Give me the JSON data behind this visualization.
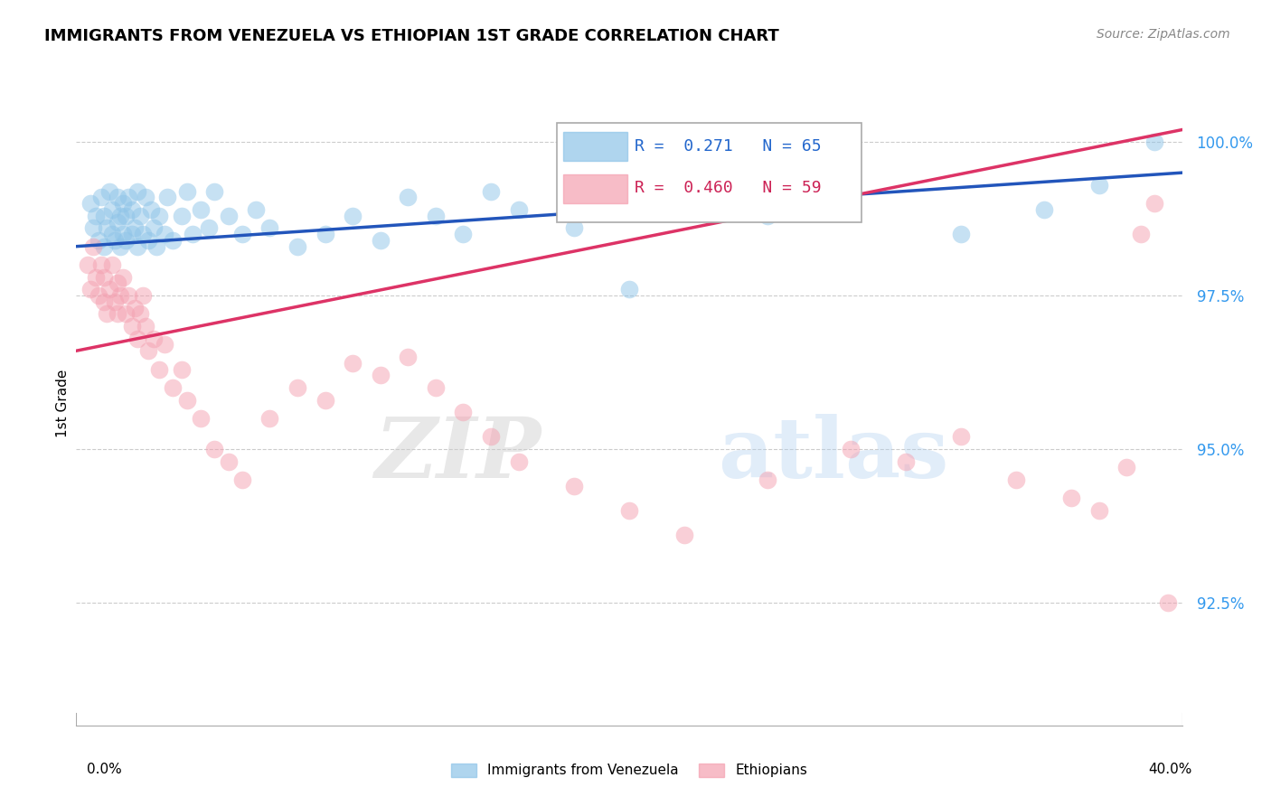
{
  "title": "IMMIGRANTS FROM VENEZUELA VS ETHIOPIAN 1ST GRADE CORRELATION CHART",
  "source": "Source: ZipAtlas.com",
  "ylabel": "1st Grade",
  "legend_label_blue": "Immigrants from Venezuela",
  "legend_label_pink": "Ethiopians",
  "r_blue": 0.271,
  "n_blue": 65,
  "r_pink": 0.46,
  "n_pink": 59,
  "color_blue": "#8ec4e8",
  "color_pink": "#f4a0b0",
  "line_color_blue": "#2255bb",
  "line_color_pink": "#dd3366",
  "watermark_zip": "ZIP",
  "watermark_atlas": "atlas",
  "xlim": [
    0.0,
    0.4
  ],
  "ylim": [
    0.905,
    1.01
  ],
  "yticks": [
    0.925,
    0.95,
    0.975,
    1.0
  ],
  "ytick_labels": [
    "92.5%",
    "95.0%",
    "97.5%",
    "100.0%"
  ],
  "blue_x": [
    0.005,
    0.006,
    0.007,
    0.008,
    0.009,
    0.01,
    0.01,
    0.011,
    0.012,
    0.013,
    0.013,
    0.014,
    0.015,
    0.015,
    0.016,
    0.016,
    0.017,
    0.017,
    0.018,
    0.018,
    0.019,
    0.02,
    0.02,
    0.021,
    0.022,
    0.022,
    0.023,
    0.024,
    0.025,
    0.026,
    0.027,
    0.028,
    0.029,
    0.03,
    0.032,
    0.033,
    0.035,
    0.038,
    0.04,
    0.042,
    0.045,
    0.048,
    0.05,
    0.055,
    0.06,
    0.065,
    0.07,
    0.08,
    0.09,
    0.1,
    0.11,
    0.12,
    0.13,
    0.14,
    0.15,
    0.16,
    0.18,
    0.2,
    0.22,
    0.25,
    0.28,
    0.32,
    0.35,
    0.37,
    0.39
  ],
  "blue_y": [
    0.99,
    0.986,
    0.988,
    0.984,
    0.991,
    0.983,
    0.988,
    0.986,
    0.992,
    0.985,
    0.989,
    0.984,
    0.987,
    0.991,
    0.983,
    0.988,
    0.985,
    0.99,
    0.984,
    0.988,
    0.991,
    0.985,
    0.989,
    0.986,
    0.992,
    0.983,
    0.988,
    0.985,
    0.991,
    0.984,
    0.989,
    0.986,
    0.983,
    0.988,
    0.985,
    0.991,
    0.984,
    0.988,
    0.992,
    0.985,
    0.989,
    0.986,
    0.992,
    0.988,
    0.985,
    0.989,
    0.986,
    0.983,
    0.985,
    0.988,
    0.984,
    0.991,
    0.988,
    0.985,
    0.992,
    0.989,
    0.986,
    0.976,
    0.992,
    0.988,
    0.991,
    0.985,
    0.989,
    0.993,
    1.0
  ],
  "pink_x": [
    0.004,
    0.005,
    0.006,
    0.007,
    0.008,
    0.009,
    0.01,
    0.01,
    0.011,
    0.012,
    0.013,
    0.014,
    0.015,
    0.015,
    0.016,
    0.017,
    0.018,
    0.019,
    0.02,
    0.021,
    0.022,
    0.023,
    0.024,
    0.025,
    0.026,
    0.028,
    0.03,
    0.032,
    0.035,
    0.038,
    0.04,
    0.045,
    0.05,
    0.055,
    0.06,
    0.07,
    0.08,
    0.09,
    0.1,
    0.11,
    0.12,
    0.13,
    0.14,
    0.15,
    0.16,
    0.18,
    0.2,
    0.22,
    0.25,
    0.28,
    0.3,
    0.32,
    0.34,
    0.36,
    0.37,
    0.38,
    0.385,
    0.39,
    0.395
  ],
  "pink_y": [
    0.98,
    0.976,
    0.983,
    0.978,
    0.975,
    0.98,
    0.974,
    0.978,
    0.972,
    0.976,
    0.98,
    0.974,
    0.977,
    0.972,
    0.975,
    0.978,
    0.972,
    0.975,
    0.97,
    0.973,
    0.968,
    0.972,
    0.975,
    0.97,
    0.966,
    0.968,
    0.963,
    0.967,
    0.96,
    0.963,
    0.958,
    0.955,
    0.95,
    0.948,
    0.945,
    0.955,
    0.96,
    0.958,
    0.964,
    0.962,
    0.965,
    0.96,
    0.956,
    0.952,
    0.948,
    0.944,
    0.94,
    0.936,
    0.945,
    0.95,
    0.948,
    0.952,
    0.945,
    0.942,
    0.94,
    0.947,
    0.985,
    0.99,
    0.925
  ]
}
